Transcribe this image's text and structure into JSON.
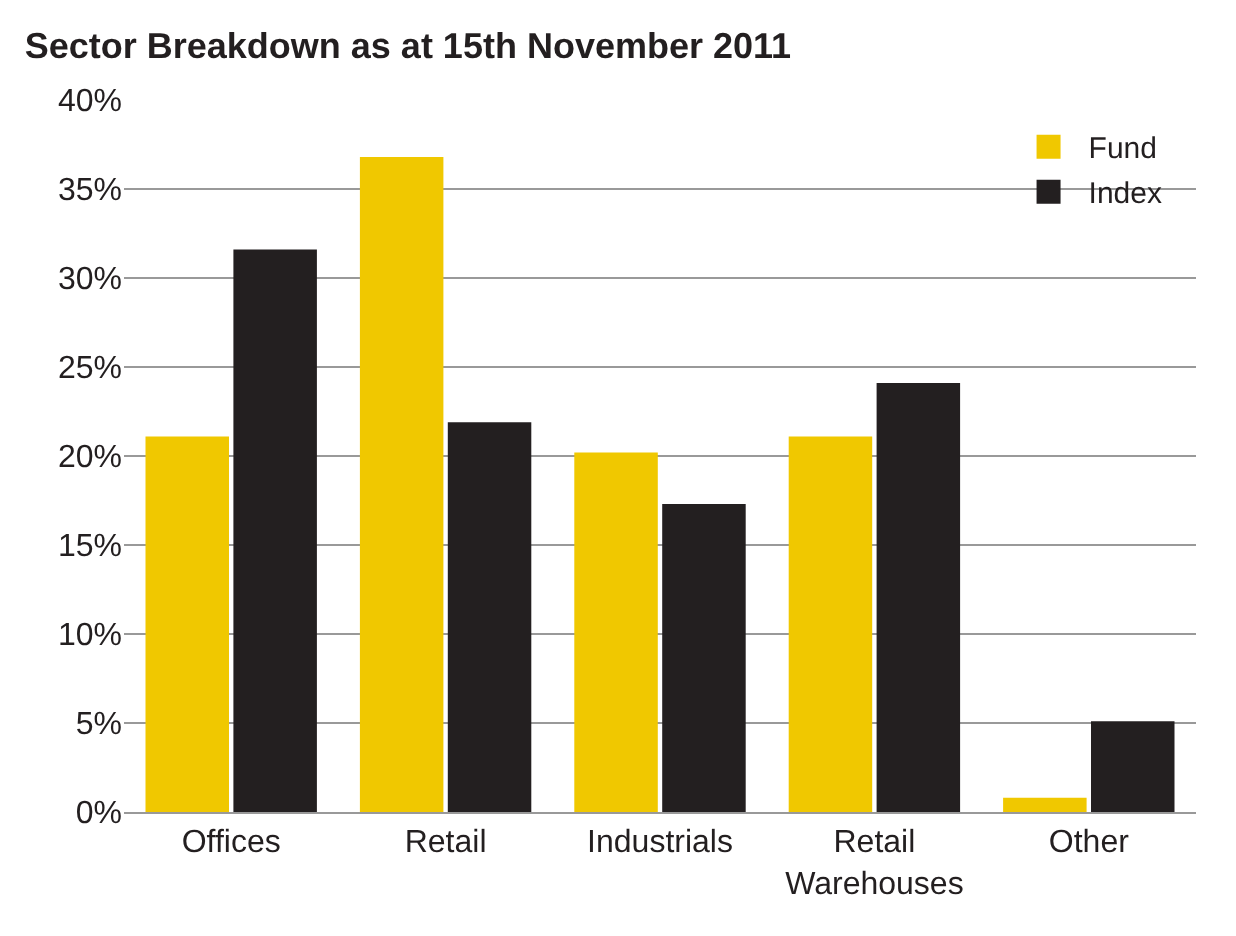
{
  "chart_data": {
    "type": "bar",
    "title": "Sector Breakdown as at 15th November 2011",
    "categories": [
      "Offices",
      "Retail",
      "Industrials",
      "Retail Warehouses",
      "Other"
    ],
    "series": [
      {
        "name": "Fund",
        "color": "#f0c800",
        "values": [
          21.1,
          36.8,
          20.2,
          21.1,
          0.8
        ]
      },
      {
        "name": "Index",
        "color": "#231f20",
        "values": [
          31.6,
          21.9,
          17.3,
          24.1,
          5.1
        ]
      }
    ],
    "ylim": [
      0,
      40
    ],
    "yticks": [
      {
        "value": 0,
        "label": "0%"
      },
      {
        "value": 5,
        "label": "5%"
      },
      {
        "value": 10,
        "label": "10%"
      },
      {
        "value": 15,
        "label": "15%"
      },
      {
        "value": 20,
        "label": "20%"
      },
      {
        "value": 25,
        "label": "25%"
      },
      {
        "value": 30,
        "label": "30%"
      },
      {
        "value": 35,
        "label": "35%"
      },
      {
        "value": 40,
        "label": "40%"
      }
    ],
    "grid": "y",
    "legend": "top right"
  }
}
